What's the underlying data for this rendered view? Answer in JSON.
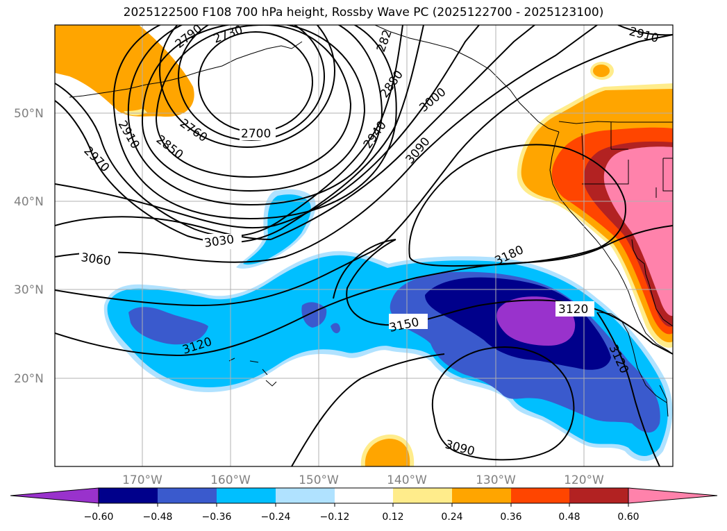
{
  "title": "2025122500 F108 700 hPa height, Rossby Wave PC (2025122700 - 2025123100)",
  "axes": {
    "lat_labels": [
      "50°N",
      "40°N",
      "30°N",
      "20°N"
    ],
    "lon_labels": [
      "170°W",
      "160°W",
      "150°W",
      "140°W",
      "130°W",
      "120°W"
    ]
  },
  "colorbar": {
    "ticks": [
      "−0.60",
      "−0.48",
      "−0.36",
      "−0.24",
      "−0.12",
      "0.12",
      "0.24",
      "0.36",
      "0.48",
      "0.60"
    ],
    "colors": {
      "lt_-0.60": "#9932cc",
      "-0.60_-0.48": "#00008b",
      "-0.48_-0.36": "#3a5acd",
      "-0.36_-0.24": "#00bfff",
      "-0.24_-0.12": "#b0e2ff",
      "-0.12_0.12": "#ffffff",
      "0.12_0.24": "#ffec8b",
      "0.24_0.36": "#ffa500",
      "0.36_0.48": "#ff4500",
      "0.48_0.60": "#b22222",
      "gt_0.60": "#ff82ab"
    }
  },
  "contour_labels": [
    "2790",
    "2730",
    "282",
    "2910",
    "2880",
    "3000",
    "2940",
    "3090",
    "2700",
    "2760",
    "2850",
    "2910",
    "2970",
    "3030",
    "3060",
    "3180",
    "3120",
    "3150",
    "3120",
    "3120",
    "3090"
  ]
}
